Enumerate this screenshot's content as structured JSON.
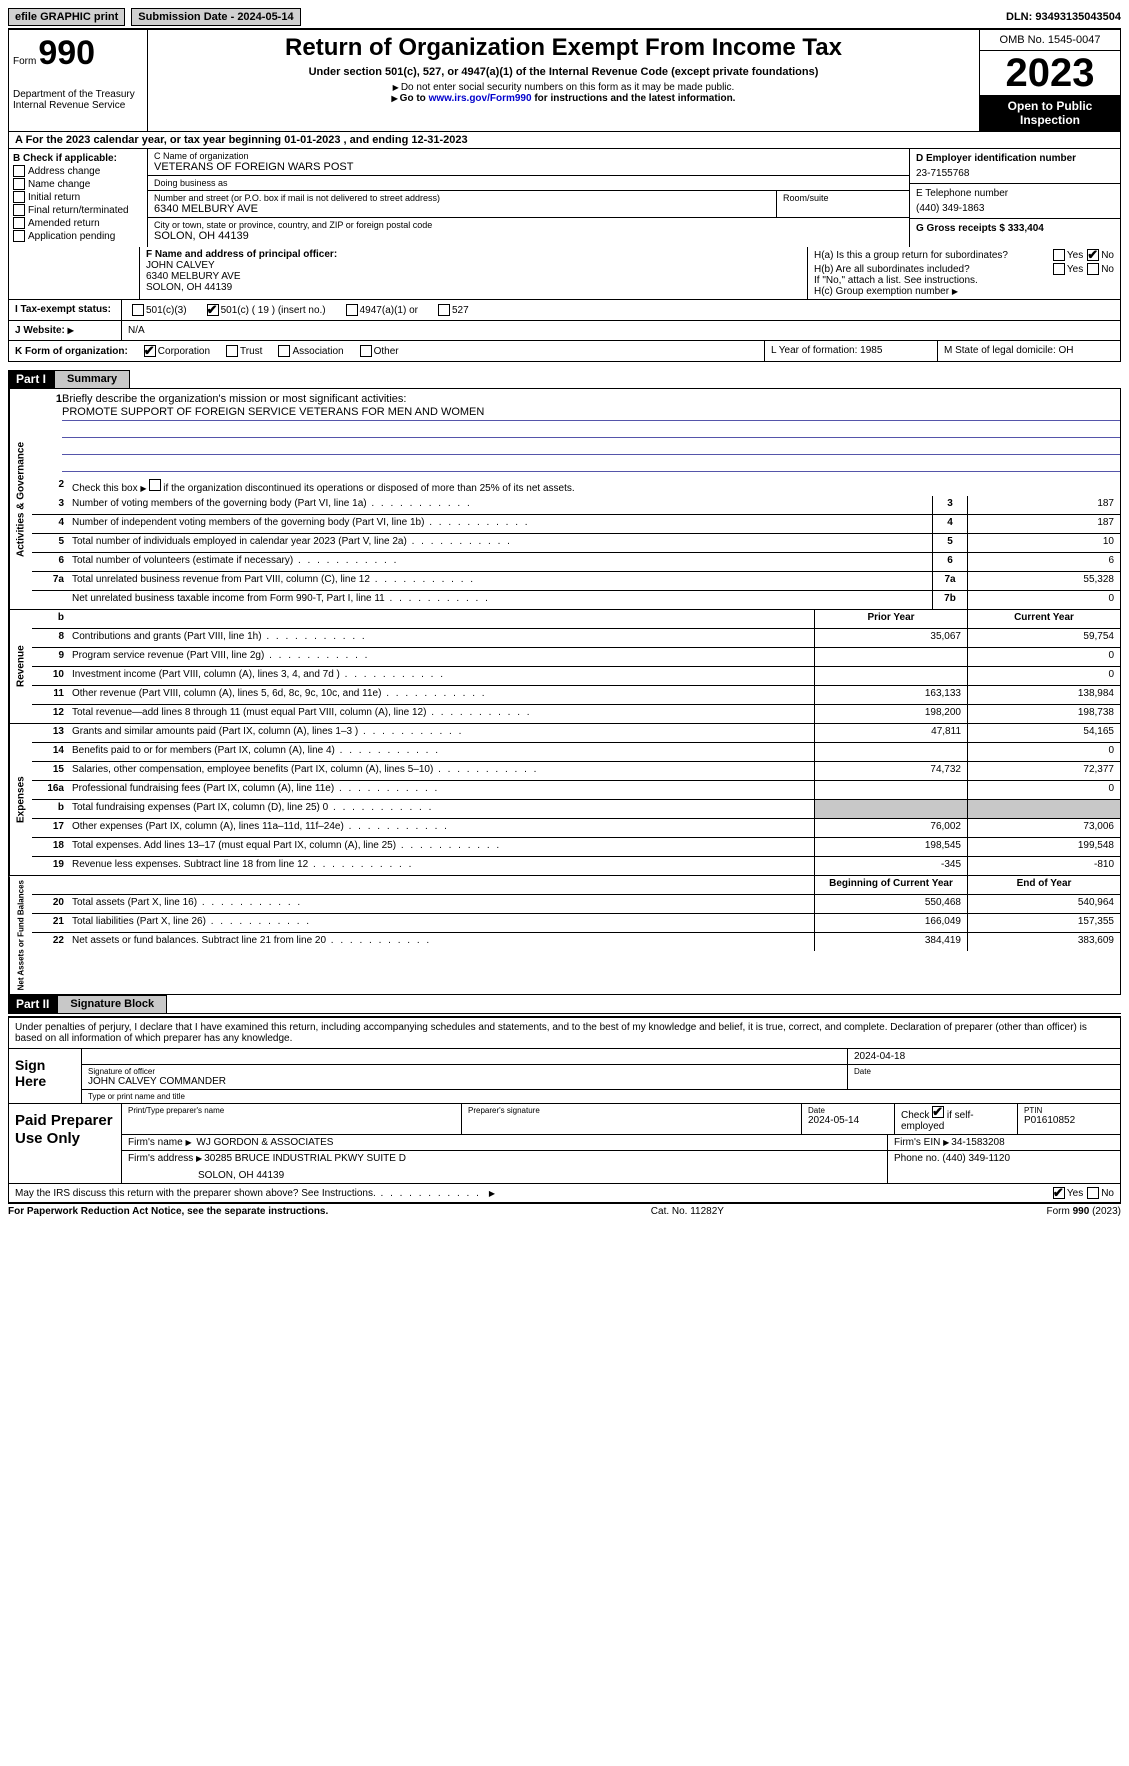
{
  "topbar": {
    "efile_label": "efile GRAPHIC print",
    "submission_label": "Submission Date - 2024-05-14",
    "dln_label": "DLN: 93493135043504"
  },
  "header": {
    "form_word": "Form",
    "form_number": "990",
    "dept": "Department of the Treasury\nInternal Revenue Service",
    "title": "Return of Organization Exempt From Income Tax",
    "subtitle": "Under section 501(c), 527, or 4947(a)(1) of the Internal Revenue Code (except private foundations)",
    "note1": "Do not enter social security numbers on this form as it may be made public.",
    "note2_pre": "Go to ",
    "note2_link": "www.irs.gov/Form990",
    "note2_post": " for instructions and the latest information.",
    "omb": "OMB No. 1545-0047",
    "year": "2023",
    "open": "Open to Public Inspection"
  },
  "row_a": "A For the 2023 calendar year, or tax year beginning 01-01-2023   , and ending 12-31-2023",
  "box_b": {
    "title": "B Check if applicable:",
    "items": [
      "Address change",
      "Name change",
      "Initial return",
      "Final return/terminated",
      "Amended return",
      "Application pending"
    ]
  },
  "box_c": {
    "name_label": "C Name of organization",
    "name": "VETERANS OF FOREIGN WARS POST",
    "dba_label": "Doing business as",
    "dba": "",
    "street_label": "Number and street (or P.O. box if mail is not delivered to street address)",
    "street": "6340 MELBURY AVE",
    "room_label": "Room/suite",
    "room": "",
    "city_label": "City or town, state or province, country, and ZIP or foreign postal code",
    "city": "SOLON, OH  44139"
  },
  "box_right": {
    "d_label": "D Employer identification number",
    "d_val": "23-7155768",
    "e_label": "E Telephone number",
    "e_val": "(440) 349-1863",
    "g_label": "G Gross receipts $ 333,404"
  },
  "box_f": {
    "label": "F  Name and address of principal officer:",
    "name": "JOHN CALVEY",
    "street": "6340 MELBURY AVE",
    "city": "SOLON, OH  44139"
  },
  "box_h": {
    "a_label": "H(a)  Is this a group return for subordinates?",
    "a_yes": "Yes",
    "a_no": "No",
    "b_label": "H(b)  Are all subordinates included?",
    "b_yes": "Yes",
    "b_no": "No",
    "b_note": "If \"No,\" attach a list. See instructions.",
    "c_label": "H(c)  Group exemption number "
  },
  "status": {
    "i_label": "I  Tax-exempt status:",
    "c3": "501(c)(3)",
    "c_other": "501(c) ( 19 ) (insert no.)",
    "a4947": "4947(a)(1) or",
    "s527": "527"
  },
  "website": {
    "j_label": "J  Website: ",
    "val": "N/A"
  },
  "k_org": {
    "label": "K Form of organization:",
    "corp": "Corporation",
    "trust": "Trust",
    "assoc": "Association",
    "other": "Other"
  },
  "l_year": {
    "label": "L Year of formation: 1985"
  },
  "m_state": {
    "label": "M State of legal domicile: OH"
  },
  "part1": {
    "hdr": "Part I",
    "title": "Summary",
    "line1_label": "Briefly describe the organization's mission or most significant activities:",
    "mission": "PROMOTE SUPPORT OF FOREIGN SERVICE VETERANS FOR MEN AND WOMEN",
    "line2": "Check this box       if the organization discontinued its operations or disposed of more than 25% of its net assets.",
    "lines_gov": [
      {
        "n": "3",
        "d": "Number of voting members of the governing body (Part VI, line 1a)",
        "box": "3",
        "v": "187"
      },
      {
        "n": "4",
        "d": "Number of independent voting members of the governing body (Part VI, line 1b)",
        "box": "4",
        "v": "187"
      },
      {
        "n": "5",
        "d": "Total number of individuals employed in calendar year 2023 (Part V, line 2a)",
        "box": "5",
        "v": "10"
      },
      {
        "n": "6",
        "d": "Total number of volunteers (estimate if necessary)",
        "box": "6",
        "v": "6"
      },
      {
        "n": "7a",
        "d": "Total unrelated business revenue from Part VIII, column (C), line 12",
        "box": "7a",
        "v": "55,328"
      },
      {
        "n": "",
        "d": "Net unrelated business taxable income from Form 990-T, Part I, line 11",
        "box": "7b",
        "v": "0"
      }
    ],
    "hdr_b": "b",
    "hdr_prior": "Prior Year",
    "hdr_curr": "Current Year",
    "lines_rev": [
      {
        "n": "8",
        "d": "Contributions and grants (Part VIII, line 1h)",
        "p": "35,067",
        "c": "59,754"
      },
      {
        "n": "9",
        "d": "Program service revenue (Part VIII, line 2g)",
        "p": "",
        "c": "0"
      },
      {
        "n": "10",
        "d": "Investment income (Part VIII, column (A), lines 3, 4, and 7d )",
        "p": "",
        "c": "0"
      },
      {
        "n": "11",
        "d": "Other revenue (Part VIII, column (A), lines 5, 6d, 8c, 9c, 10c, and 11e)",
        "p": "163,133",
        "c": "138,984"
      },
      {
        "n": "12",
        "d": "Total revenue—add lines 8 through 11 (must equal Part VIII, column (A), line 12)",
        "p": "198,200",
        "c": "198,738"
      }
    ],
    "lines_exp": [
      {
        "n": "13",
        "d": "Grants and similar amounts paid (Part IX, column (A), lines 1–3 )",
        "p": "47,811",
        "c": "54,165"
      },
      {
        "n": "14",
        "d": "Benefits paid to or for members (Part IX, column (A), line 4)",
        "p": "",
        "c": "0"
      },
      {
        "n": "15",
        "d": "Salaries, other compensation, employee benefits (Part IX, column (A), lines 5–10)",
        "p": "74,732",
        "c": "72,377"
      },
      {
        "n": "16a",
        "d": "Professional fundraising fees (Part IX, column (A), line 11e)",
        "p": "",
        "c": "0"
      },
      {
        "n": "b",
        "d": "Total fundraising expenses (Part IX, column (D), line 25) 0",
        "p": "grey",
        "c": "grey"
      },
      {
        "n": "17",
        "d": "Other expenses (Part IX, column (A), lines 11a–11d, 11f–24e)",
        "p": "76,002",
        "c": "73,006"
      },
      {
        "n": "18",
        "d": "Total expenses. Add lines 13–17 (must equal Part IX, column (A), line 25)",
        "p": "198,545",
        "c": "199,548"
      },
      {
        "n": "19",
        "d": "Revenue less expenses. Subtract line 18 from line 12",
        "p": "-345",
        "c": "-810"
      }
    ],
    "hdr_begin": "Beginning of Current Year",
    "hdr_end": "End of Year",
    "lines_net": [
      {
        "n": "20",
        "d": "Total assets (Part X, line 16)",
        "p": "550,468",
        "c": "540,964"
      },
      {
        "n": "21",
        "d": "Total liabilities (Part X, line 26)",
        "p": "166,049",
        "c": "157,355"
      },
      {
        "n": "22",
        "d": "Net assets or fund balances. Subtract line 21 from line 20",
        "p": "384,419",
        "c": "383,609"
      }
    ],
    "vtab_gov": "Activities & Governance",
    "vtab_rev": "Revenue",
    "vtab_exp": "Expenses",
    "vtab_net": "Net Assets or Fund Balances"
  },
  "part2": {
    "hdr": "Part II",
    "title": "Signature Block",
    "decl": "Under penalties of perjury, I declare that I have examined this return, including accompanying schedules and statements, and to the best of my knowledge and belief, it is true, correct, and complete. Declaration of preparer (other than officer) is based on all information of which preparer has any knowledge.",
    "sign_here": "Sign Here",
    "sig_officer_lbl": "Signature of officer",
    "sig_date_lbl": "Date",
    "sig_date": "2024-04-18",
    "officer_name": "JOHN CALVEY COMMANDER",
    "type_name_lbl": "Type or print name and title",
    "paid_label": "Paid Preparer Use Only",
    "prep_name_lbl": "Print/Type preparer's name",
    "prep_name": "",
    "prep_sig_lbl": "Preparer's signature",
    "prep_date_lbl": "Date",
    "prep_date": "2024-05-14",
    "self_emp_lbl": "Check        if self-employed",
    "ptin_lbl": "PTIN",
    "ptin": "P01610852",
    "firm_name_lbl": "Firm's name  ",
    "firm_name": "WJ GORDON & ASSOCIATES",
    "firm_ein_lbl": "Firm's EIN ",
    "firm_ein": "34-1583208",
    "firm_addr_lbl": "Firm's address ",
    "firm_addr1": "30285 BRUCE INDUSTRIAL PKWY SUITE D",
    "firm_addr2": "SOLON, OH  44139",
    "phone_lbl": "Phone no. ",
    "phone": "(440) 349-1120",
    "discuss": "May the IRS discuss this return with the preparer shown above? See Instructions.",
    "yes": "Yes",
    "no": "No"
  },
  "footer": {
    "left": "For Paperwork Reduction Act Notice, see the separate instructions.",
    "mid": "Cat. No. 11282Y",
    "right": "Form 990 (2023)"
  }
}
